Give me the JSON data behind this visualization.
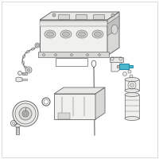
{
  "bg_color": "#ffffff",
  "border_color": "#dddddd",
  "line_color": "#666666",
  "highlight_color": "#4ab8cc",
  "highlight_edge": "#2288aa",
  "gray_fill": "#e8e8e6",
  "mid_gray": "#d8d8d6",
  "dark_gray": "#c0c0be",
  "light_fill": "#f0f0ee"
}
